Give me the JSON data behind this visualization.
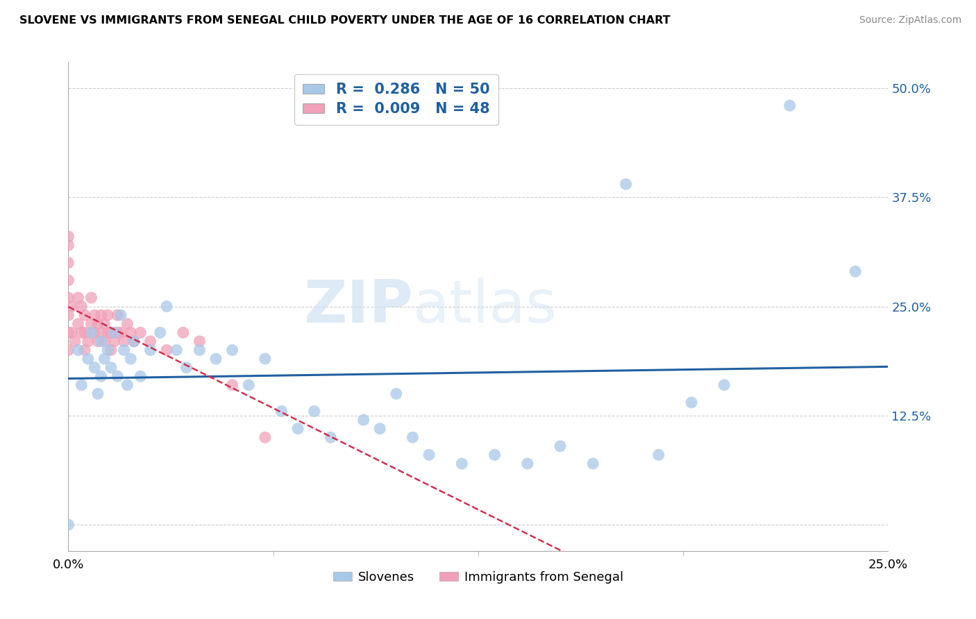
{
  "title": "SLOVENE VS IMMIGRANTS FROM SENEGAL CHILD POVERTY UNDER THE AGE OF 16 CORRELATION CHART",
  "source": "Source: ZipAtlas.com",
  "xmin": 0.0,
  "xmax": 0.25,
  "ymin": -0.03,
  "ymax": 0.53,
  "blue_R": 0.286,
  "blue_N": 50,
  "pink_R": 0.009,
  "pink_N": 48,
  "blue_color": "#a8c8e8",
  "pink_color": "#f0a0b8",
  "blue_line_color": "#2060a0",
  "pink_line_color": "#d03050",
  "blue_scatter_x": [
    0.0,
    0.003,
    0.004,
    0.006,
    0.007,
    0.008,
    0.009,
    0.01,
    0.01,
    0.011,
    0.012,
    0.013,
    0.014,
    0.015,
    0.016,
    0.017,
    0.018,
    0.019,
    0.02,
    0.022,
    0.025,
    0.028,
    0.03,
    0.033,
    0.036,
    0.04,
    0.045,
    0.05,
    0.055,
    0.06,
    0.065,
    0.07,
    0.075,
    0.08,
    0.09,
    0.095,
    0.1,
    0.105,
    0.11,
    0.12,
    0.13,
    0.14,
    0.15,
    0.16,
    0.17,
    0.18,
    0.19,
    0.2,
    0.22,
    0.24
  ],
  "blue_scatter_y": [
    0.0,
    0.2,
    0.16,
    0.19,
    0.22,
    0.18,
    0.15,
    0.21,
    0.17,
    0.19,
    0.2,
    0.18,
    0.22,
    0.17,
    0.24,
    0.2,
    0.16,
    0.19,
    0.21,
    0.17,
    0.2,
    0.22,
    0.25,
    0.2,
    0.18,
    0.2,
    0.19,
    0.2,
    0.16,
    0.19,
    0.13,
    0.11,
    0.13,
    0.1,
    0.12,
    0.11,
    0.15,
    0.1,
    0.08,
    0.07,
    0.08,
    0.07,
    0.09,
    0.07,
    0.39,
    0.08,
    0.14,
    0.16,
    0.48,
    0.29
  ],
  "pink_scatter_x": [
    0.0,
    0.0,
    0.0,
    0.0,
    0.0,
    0.0,
    0.0,
    0.0,
    0.001,
    0.001,
    0.002,
    0.003,
    0.003,
    0.004,
    0.004,
    0.005,
    0.005,
    0.005,
    0.006,
    0.007,
    0.007,
    0.008,
    0.008,
    0.009,
    0.009,
    0.01,
    0.01,
    0.011,
    0.011,
    0.012,
    0.012,
    0.013,
    0.013,
    0.014,
    0.015,
    0.015,
    0.016,
    0.017,
    0.018,
    0.019,
    0.02,
    0.022,
    0.025,
    0.03,
    0.035,
    0.04,
    0.05,
    0.06
  ],
  "pink_scatter_y": [
    0.2,
    0.22,
    0.24,
    0.26,
    0.28,
    0.3,
    0.32,
    0.33,
    0.22,
    0.25,
    0.21,
    0.23,
    0.26,
    0.22,
    0.25,
    0.2,
    0.22,
    0.24,
    0.21,
    0.23,
    0.26,
    0.22,
    0.24,
    0.21,
    0.23,
    0.22,
    0.24,
    0.21,
    0.23,
    0.22,
    0.24,
    0.2,
    0.22,
    0.21,
    0.22,
    0.24,
    0.22,
    0.21,
    0.23,
    0.22,
    0.21,
    0.22,
    0.21,
    0.2,
    0.22,
    0.21,
    0.16,
    0.1
  ]
}
